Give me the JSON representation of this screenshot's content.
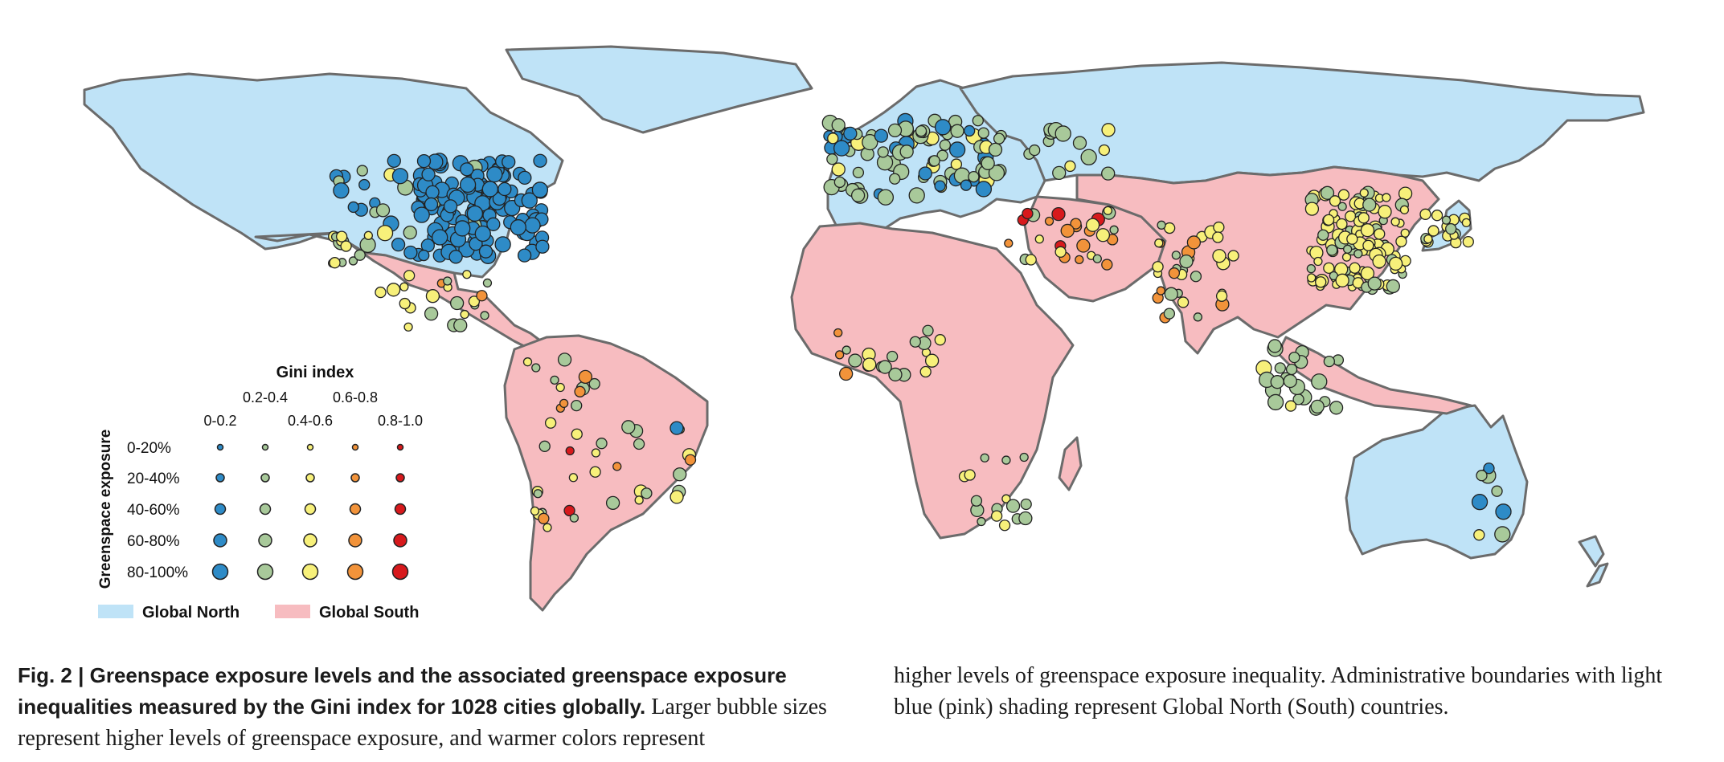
{
  "legend": {
    "gini_title": "Gini index",
    "gini_categories": [
      "0-0.2",
      "0.2-0.4",
      "0.4-0.6",
      "0.6-0.8",
      "0.8-1.0"
    ],
    "gini_colors": [
      "#2e8bc7",
      "#a8c99a",
      "#f7f07a",
      "#f2933a",
      "#d7191c"
    ],
    "exposure_title": "Greenspace exposure",
    "exposure_rows": [
      "0-20%",
      "20-40%",
      "40-60%",
      "60-80%",
      "80-100%"
    ],
    "regions": [
      {
        "label": "Global North",
        "color": "#bfe3f7"
      },
      {
        "label": "Global South",
        "color": "#f7bcc0"
      }
    ]
  },
  "caption": {
    "fig_label": "Fig. 2 | ",
    "bold_title": "Greenspace exposure levels and the associated greenspace exposure inequalities measured by the Gini index for 1028 cities globally.",
    "body_left": " Larger bubble sizes represent higher levels of greenspace exposure, and warmer colors represent",
    "body_right": "higher levels of greenspace exposure inequality. Administrative boundaries with light blue (pink) shading represent Global North (South) countries."
  },
  "colors": {
    "global_north": "#bfe3f7",
    "global_south": "#f7bcc0",
    "border": "#6b6b6b",
    "ocean": "#ffffff"
  },
  "map_data": {
    "regions": [
      {
        "name": "North America",
        "class": "Global North"
      },
      {
        "name": "Greenland",
        "class": "Global North"
      },
      {
        "name": "Europe",
        "class": "Global North"
      },
      {
        "name": "Russia",
        "class": "Global North"
      },
      {
        "name": "Japan",
        "class": "Global North"
      },
      {
        "name": "Australia",
        "class": "Global North"
      },
      {
        "name": "New Zealand",
        "class": "Global North"
      },
      {
        "name": "Mexico & Central America",
        "class": "Global South"
      },
      {
        "name": "South America",
        "class": "Global South"
      },
      {
        "name": "Africa",
        "class": "Global South"
      },
      {
        "name": "Middle East",
        "class": "Global South"
      },
      {
        "name": "South & East Asia",
        "class": "Global South"
      },
      {
        "name": "Southeast Asia",
        "class": "Global South"
      }
    ]
  }
}
